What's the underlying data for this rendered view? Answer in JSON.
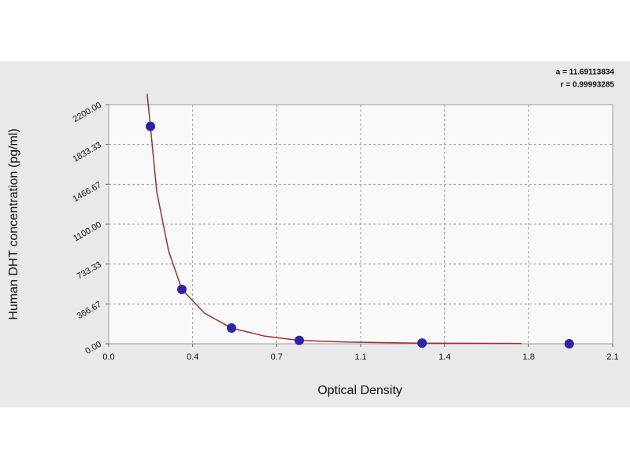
{
  "chart_data": {
    "type": "scatter",
    "x_label": "Optical Density",
    "y_label": "Human DHT concentration (pg/ml)",
    "annotations": [
      "a = 11.69113834",
      "r = 0.99993285"
    ],
    "x": [
      0.174,
      0.305,
      0.512,
      0.794,
      1.306,
      1.919
    ],
    "values": [
      2000,
      500,
      145,
      31,
      6,
      0
    ],
    "color": "#2e22a8",
    "fit_curve": {
      "x": [
        0.16,
        0.174,
        0.2,
        0.25,
        0.305,
        0.4,
        0.512,
        0.65,
        0.794,
        1.0,
        1.3,
        1.72
      ],
      "values": [
        2300,
        2000,
        1400,
        850,
        500,
        280,
        145,
        70,
        31,
        15,
        6,
        3
      ],
      "color": "#a0302a"
    },
    "xlim": [
      0,
      2.1
    ],
    "xticks": [
      {
        "value": 0,
        "label": "0.0"
      },
      {
        "value": 0.35,
        "label": "0.4"
      },
      0.7,
      {
        "value": 1.05,
        "label": "1.1"
      },
      1.4,
      {
        "value": 1.75,
        "label": "1.8"
      },
      2.1
    ],
    "ylim": [
      0,
      2200
    ],
    "yticks": [
      {
        "value": 0,
        "label": "0.00"
      },
      366.67,
      733.33,
      {
        "value": 1100,
        "label": "1100.00"
      },
      1466.67,
      1833.33,
      {
        "value": 2200,
        "label": "2200.00"
      }
    ],
    "grid": true
  }
}
